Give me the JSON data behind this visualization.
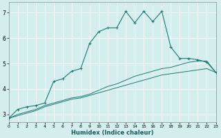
{
  "xlabel": "Humidex (Indice chaleur)",
  "background_color": "#d4eeee",
  "grid_color": "#ffffff",
  "line_color": "#1a7a6e",
  "xlim": [
    0,
    23
  ],
  "ylim": [
    2.7,
    7.4
  ],
  "yticks": [
    3,
    4,
    5,
    6,
    7
  ],
  "xticks": [
    0,
    1,
    2,
    3,
    4,
    5,
    6,
    7,
    8,
    9,
    10,
    11,
    12,
    13,
    14,
    15,
    16,
    17,
    18,
    19,
    20,
    21,
    22,
    23
  ],
  "series1_x": [
    0,
    1,
    2,
    3,
    4,
    5,
    6,
    7,
    8,
    9,
    10,
    11,
    12,
    13,
    14,
    15,
    16,
    17,
    18,
    19,
    20,
    21,
    22,
    23
  ],
  "series1_y": [
    2.85,
    3.2,
    3.3,
    3.35,
    3.45,
    4.3,
    4.4,
    4.7,
    4.8,
    5.8,
    6.25,
    6.4,
    6.4,
    7.05,
    6.6,
    7.05,
    6.65,
    7.05,
    5.65,
    5.2,
    5.2,
    5.15,
    5.05,
    4.65
  ],
  "series2_x": [
    0,
    1,
    2,
    3,
    4,
    5,
    6,
    7,
    8,
    9,
    10,
    11,
    12,
    13,
    14,
    15,
    16,
    17,
    18,
    19,
    20,
    21,
    22,
    23
  ],
  "series2_y": [
    2.85,
    3.0,
    3.1,
    3.2,
    3.35,
    3.45,
    3.55,
    3.65,
    3.7,
    3.8,
    3.95,
    4.1,
    4.2,
    4.35,
    4.5,
    4.6,
    4.7,
    4.8,
    4.85,
    4.95,
    5.05,
    5.1,
    5.1,
    4.65
  ],
  "series3_x": [
    0,
    1,
    2,
    3,
    4,
    5,
    6,
    7,
    8,
    9,
    10,
    11,
    12,
    13,
    14,
    15,
    16,
    17,
    18,
    19,
    20,
    21,
    22,
    23
  ],
  "series3_y": [
    2.85,
    2.95,
    3.05,
    3.15,
    3.3,
    3.4,
    3.5,
    3.6,
    3.65,
    3.75,
    3.85,
    3.95,
    4.05,
    4.15,
    4.25,
    4.35,
    4.45,
    4.55,
    4.6,
    4.65,
    4.7,
    4.75,
    4.8,
    4.65
  ],
  "figsize": [
    3.2,
    2.0
  ],
  "dpi": 100
}
